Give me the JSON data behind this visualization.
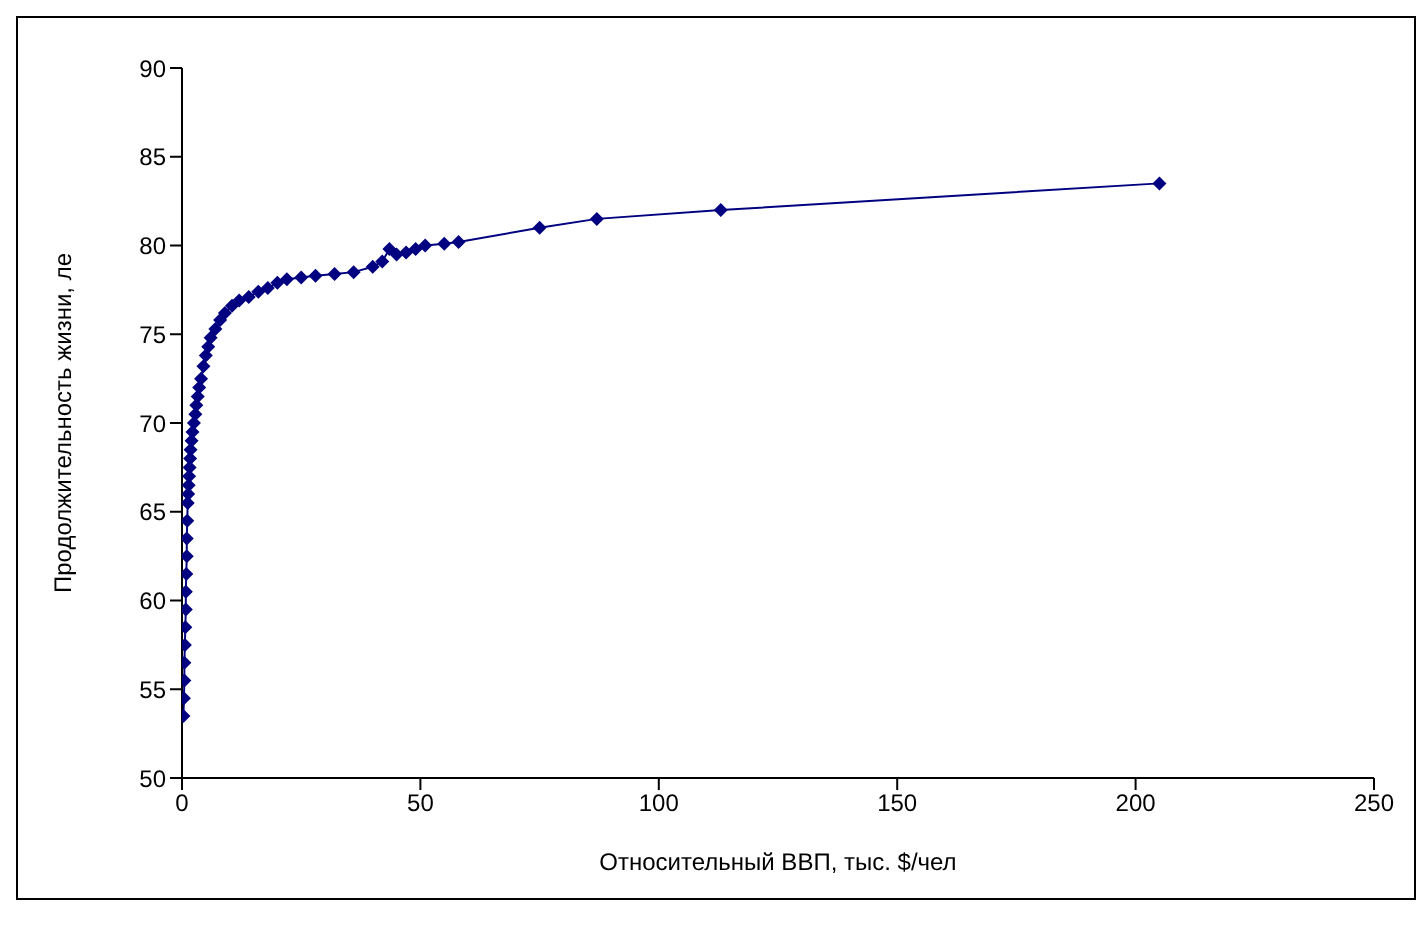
{
  "chart_data": {
    "type": "line",
    "xlabel": "Относительный ВВП, тыс. $/чел",
    "ylabel": "Продолжительность жизни, ле",
    "xlim": [
      0,
      250
    ],
    "xticks": [
      0,
      50,
      100,
      150,
      200,
      250
    ],
    "ylim": [
      50,
      90
    ],
    "yticks": [
      50,
      55,
      60,
      65,
      70,
      75,
      80,
      85,
      90
    ],
    "grid": false,
    "legend": false,
    "marker": "diamond",
    "line_style": "solid",
    "series": [
      {
        "color": "#000080",
        "x": [
          0.3,
          0.4,
          0.5,
          0.5,
          0.6,
          0.7,
          0.8,
          0.8,
          0.9,
          1.0,
          1.0,
          1.1,
          1.2,
          1.3,
          1.4,
          1.5,
          1.6,
          1.7,
          1.8,
          2.0,
          2.2,
          2.5,
          2.8,
          3.0,
          3.3,
          3.6,
          4.0,
          4.5,
          5.0,
          5.5,
          6.0,
          7.0,
          8.0,
          9.0,
          10.5,
          12.0,
          14.0,
          16.0,
          18.0,
          20.0,
          22.0,
          25.0,
          28.0,
          32.0,
          36.0,
          40.0,
          42.0,
          43.5,
          45.0,
          47.0,
          49.0,
          51.0,
          55.0,
          58.0,
          75.0,
          87.0,
          113.0,
          205.0
        ],
        "values": [
          53.5,
          54.5,
          55.5,
          56.5,
          57.5,
          58.5,
          59.5,
          60.5,
          61.5,
          62.5,
          63.5,
          64.5,
          65.5,
          66,
          66.5,
          67,
          67.5,
          68,
          68.5,
          69,
          69.5,
          70,
          70.5,
          71,
          71.5,
          72,
          72.5,
          73.2,
          73.8,
          74.3,
          74.8,
          75.3,
          75.8,
          76.2,
          76.6,
          76.9,
          77.1,
          77.4,
          77.6,
          77.9,
          78.1,
          78.2,
          78.3,
          78.4,
          78.5,
          78.8,
          79.1,
          79.8,
          79.5,
          79.6,
          79.8,
          80,
          80.1,
          80.2,
          81,
          81.5,
          82,
          83.5
        ]
      }
    ]
  }
}
